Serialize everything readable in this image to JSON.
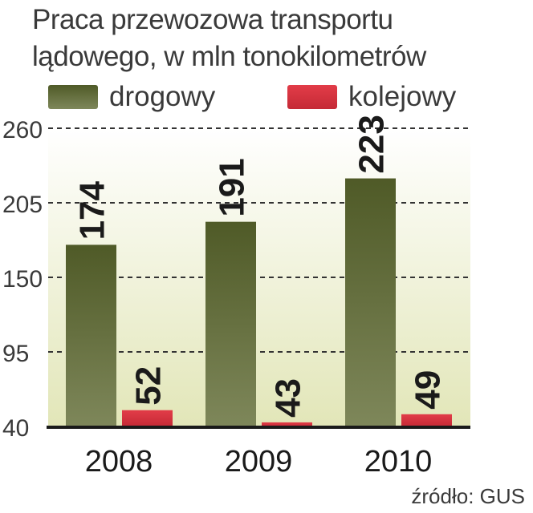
{
  "chart_data": {
    "type": "bar",
    "title": "Praca przewozowa transportu lądowego, w mln tonokilometrów",
    "categories": [
      "2008",
      "2009",
      "2010"
    ],
    "series": [
      {
        "name": "drogowy",
        "values": [
          174,
          191,
          223
        ],
        "color": "#5a6330"
      },
      {
        "name": "kolejowy",
        "values": [
          52,
          43,
          49
        ],
        "color": "#d8303e"
      }
    ],
    "yticks": [
      40,
      95,
      150,
      205,
      260
    ],
    "ylim": [
      40,
      260
    ],
    "grid": true,
    "legend": "top",
    "source": "źródło: GUS",
    "plot_background": [
      "#ffffff",
      "#e2e6b8"
    ]
  }
}
